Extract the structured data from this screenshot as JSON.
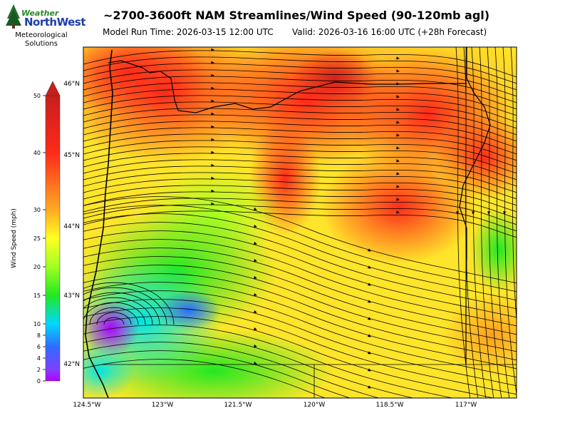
{
  "logo": {
    "brand_top": "Weather",
    "brand_bottom": "NorthWest",
    "line1": "Meteorological",
    "line2": "Solutions"
  },
  "title": "~2700-3600ft NAM Streamlines/Wind Speed (90-120mb agl)",
  "model_run": "Model Run Time: 2026-03-15 12:00 UTC",
  "valid_time": "Valid: 2026-03-16 16:00 UTC  (+28h Forecast)",
  "colorbar": {
    "label": "Wind Speed (mph)",
    "ticks": [
      0,
      2,
      4,
      6,
      8,
      10,
      15,
      20,
      25,
      30,
      40,
      50
    ]
  },
  "lat_labels": [
    "46°N",
    "45°N",
    "44°N",
    "43°N",
    "42°N"
  ],
  "lon_labels": [
    "124.5°W",
    "123°W",
    "121.5°W",
    "120°W",
    "118.5°W",
    "117°W"
  ],
  "colors": {
    "purple": "#b400ff",
    "blue": "#2f6bff",
    "cyan": "#00e5e5",
    "green": "#22e822",
    "yellow": "#ffff22",
    "orange": "#ffaa22",
    "red": "#ff2a1a",
    "darkred": "#c81e1e"
  }
}
